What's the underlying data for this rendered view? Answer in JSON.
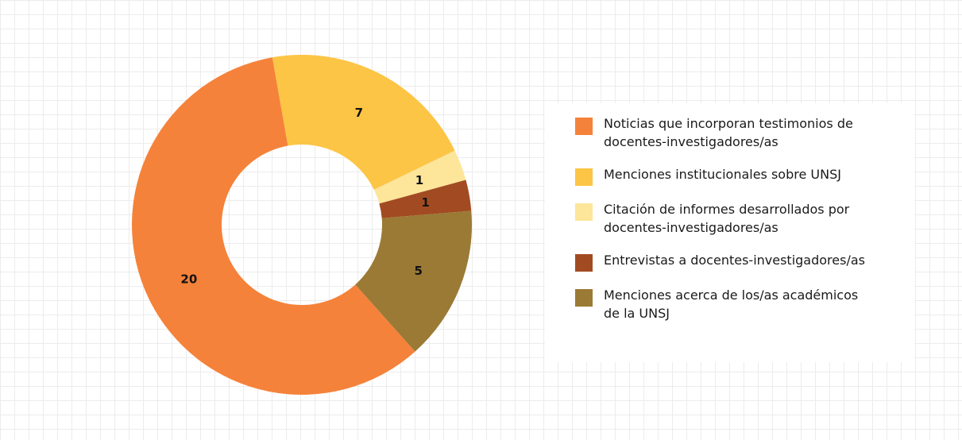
{
  "chart_data": {
    "type": "donut",
    "series": [
      {
        "name": "Noticias que incorporan testimonios de docentes-investigadores/as",
        "color": "#f5823a",
        "values": [
          20
        ]
      },
      {
        "name": "Menciones institucionales sobre UNSJ",
        "color": "#fdc545",
        "values": [
          7
        ]
      },
      {
        "name": "Citación de informes desarrollados por docentes-investigadores/as",
        "color": "#fde59a",
        "values": [
          1
        ]
      },
      {
        "name": "Entrevistas a docentes-investigadores/as",
        "color": "#a24b22",
        "values": [
          1
        ]
      },
      {
        "name": "Menciones acerca de los/as académicos de la UNSJ",
        "color": "#9a7a35",
        "values": [
          5
        ]
      }
    ]
  }
}
